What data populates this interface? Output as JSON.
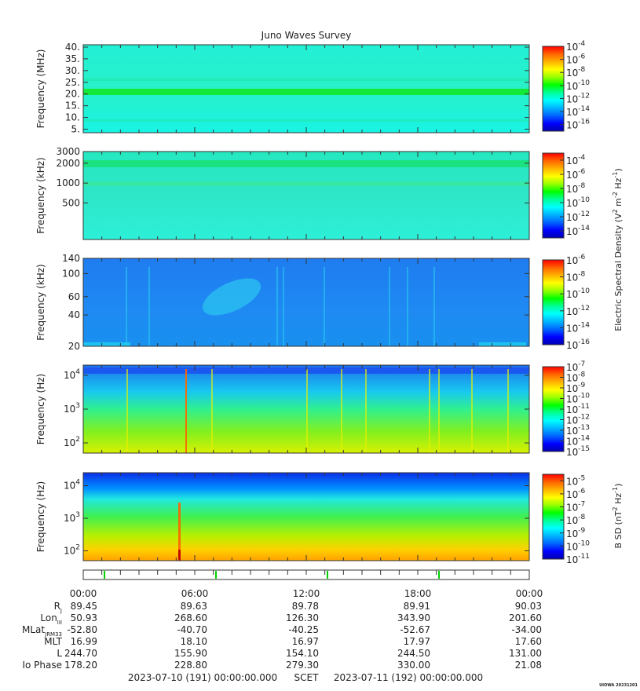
{
  "title": "Juno Waves Survey",
  "footer": {
    "start": "2023-07-10 (191) 00:00:00.000",
    "mid": "SCET",
    "end": "2023-07-11 (192) 00:00:00.000",
    "tag": "UIOWA 20231201"
  },
  "colors": {
    "scale": [
      "#0000b0",
      "#0000ff",
      "#0064ff",
      "#00b4ff",
      "#00ffff",
      "#00ff96",
      "#00ff00",
      "#96ff00",
      "#ffff00",
      "#ffb400",
      "#ff6400",
      "#ff0000"
    ]
  },
  "chart_data": [
    {
      "type": "heatmap",
      "id": "p1",
      "ylabel": "Frequency (MHz)",
      "yticks": [
        "40.",
        "35.",
        "30.",
        "25.",
        "20.",
        "15.",
        "10.",
        "5."
      ],
      "yvalues": [
        40,
        35,
        30,
        25,
        20,
        15,
        10,
        5
      ],
      "ylim": [
        3.5,
        41
      ],
      "yscale": "linear",
      "cbar_ticks": [
        "-4",
        "-6",
        "-8",
        "-10",
        "-12",
        "-14",
        "-16"
      ],
      "cbar_exp": [
        -4,
        -6,
        -8,
        -10,
        -12,
        -14,
        -16
      ],
      "cbar_range": [
        -17,
        -4
      ]
    },
    {
      "type": "heatmap",
      "id": "p2",
      "ylabel": "Frequency (kHz)",
      "yticks": [
        "3000",
        "2000",
        "1000",
        "500"
      ],
      "yvalues": [
        3000,
        2000,
        1000,
        500
      ],
      "ylim": [
        140,
        3000
      ],
      "yscale": "log",
      "cbar_ticks": [
        "-4",
        "-6",
        "-8",
        "-10",
        "-12",
        "-14"
      ],
      "cbar_exp": [
        -4,
        -6,
        -8,
        -10,
        -12,
        -14
      ],
      "cbar_range": [
        -15,
        -3
      ]
    },
    {
      "type": "heatmap",
      "id": "p3",
      "ylabel": "Frequency (kHz)",
      "yticks": [
        "140",
        "100",
        "60",
        "40",
        "20"
      ],
      "yvalues": [
        140,
        100,
        60,
        40,
        20
      ],
      "ylim": [
        20,
        140
      ],
      "yscale": "log",
      "cbar_ticks": [
        "-6",
        "-8",
        "-10",
        "-12",
        "-14",
        "-16"
      ],
      "cbar_exp": [
        -6,
        -8,
        -10,
        -12,
        -14,
        -16
      ],
      "cbar_range": [
        -16,
        -6
      ]
    },
    {
      "type": "heatmap",
      "id": "p4",
      "ylabel": "Frequency (Hz)",
      "yticks": [
        "4",
        "3",
        "2"
      ],
      "yvalues": [
        10000,
        1000,
        100
      ],
      "ylim": [
        50,
        20000
      ],
      "yscale": "log",
      "cbar_ticks": [
        "-7",
        "-8",
        "-9",
        "-10",
        "-11",
        "-12",
        "-13",
        "-14",
        "-15"
      ],
      "cbar_exp": [
        -7,
        -8,
        -9,
        -10,
        -11,
        -12,
        -13,
        -14,
        -15
      ],
      "cbar_range": [
        -15,
        -7
      ]
    },
    {
      "type": "heatmap",
      "id": "p5",
      "ylabel": "Frequency (Hz)",
      "yticks": [
        "4",
        "3",
        "2"
      ],
      "yvalues": [
        10000,
        1000,
        100
      ],
      "ylim": [
        50,
        25000
      ],
      "yscale": "log",
      "cbar_ticks": [
        "-5",
        "-6",
        "-7",
        "-8",
        "-9",
        "-10",
        "-11"
      ],
      "cbar_exp": [
        -5,
        -6,
        -7,
        -8,
        -9,
        -10,
        -11
      ],
      "cbar_range": [
        -11,
        -4.5
      ]
    }
  ],
  "cbar_label_e": "Electric Spectral Density",
  "cbar_label_b": "B SD",
  "ephem": {
    "labels": [
      "R",
      "Lon",
      "MLat",
      "MLT",
      "L",
      "Io Phase"
    ],
    "subs": [
      "J",
      "III",
      "JRM33",
      "",
      "",
      ""
    ],
    "times": [
      "00:00",
      "06:00",
      "12:00",
      "18:00",
      "00:00"
    ],
    "rows": [
      [
        "89.45",
        "89.63",
        "89.78",
        "89.91",
        "90.03"
      ],
      [
        "50.93",
        "268.60",
        "126.30",
        "343.90",
        "201.60"
      ],
      [
        "-52.80",
        "-40.70",
        "-40.25",
        "-52.67",
        "-34.00"
      ],
      [
        "16.99",
        "18.10",
        "16.97",
        "17.97",
        "17.60"
      ],
      [
        "244.70",
        "155.90",
        "154.10",
        "244.50",
        "131.00"
      ],
      [
        "178.20",
        "228.80",
        "279.30",
        "330.00",
        "21.08"
      ]
    ]
  }
}
